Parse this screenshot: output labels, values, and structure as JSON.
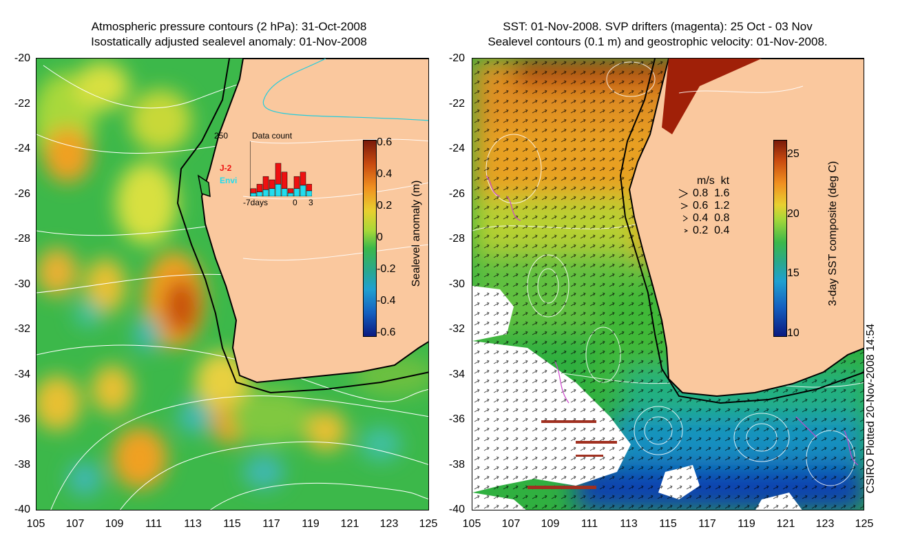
{
  "left_panel": {
    "title_line1": "Atmospheric pressure contours (2 hPa): 31-Oct-2008",
    "title_line2": "Isostatically adjusted sealevel anomaly: 01-Nov-2008",
    "y_ticks": [
      "-20",
      "-22",
      "-24",
      "-26",
      "-28",
      "-30",
      "-32",
      "-34",
      "-36",
      "-38",
      "-40"
    ],
    "x_ticks": [
      "105",
      "107",
      "109",
      "111",
      "113",
      "115",
      "117",
      "119",
      "121",
      "123",
      "125"
    ],
    "colorbar": {
      "label": "Sealevel anomaly (m)",
      "ticks": [
        "0.6",
        "0.4",
        "0.2",
        "0",
        "-0.2",
        "-0.4",
        "-0.6"
      ]
    },
    "inset": {
      "title": "Data count",
      "ymax": "250",
      "x_ticks": [
        "-7days",
        "0",
        "3"
      ],
      "series_labels": [
        "J-2",
        "Envi"
      ],
      "series_colors": [
        "#ee1111",
        "#22ddee"
      ],
      "bars": [
        {
          "j2": 20,
          "envi": 15
        },
        {
          "j2": 35,
          "envi": 20
        },
        {
          "j2": 60,
          "envi": 30
        },
        {
          "j2": 40,
          "envi": 35
        },
        {
          "j2": 95,
          "envi": 55
        },
        {
          "j2": 75,
          "envi": 35
        },
        {
          "j2": 20,
          "envi": 15
        },
        {
          "j2": 55,
          "envi": 35
        },
        {
          "j2": 60,
          "envi": 50
        },
        {
          "j2": 30,
          "envi": 25
        }
      ]
    }
  },
  "right_panel": {
    "title_line1": "SST: 01-Nov-2008. SVP drifters (magenta): 25 Oct - 03 Nov",
    "title_line2": "Sealevel contours (0.1 m) and geostrophic velocity: 01-Nov-2008.",
    "y_ticks": [
      "-20",
      "-22",
      "-24",
      "-26",
      "-28",
      "-30",
      "-32",
      "-34",
      "-36",
      "-38",
      "-40"
    ],
    "x_ticks": [
      "105",
      "107",
      "109",
      "111",
      "113",
      "115",
      "117",
      "119",
      "121",
      "123",
      "125"
    ],
    "colorbar": {
      "label": "3-day SST composite (deg C)",
      "ticks": [
        "25",
        "20",
        "15",
        "10"
      ]
    },
    "velocity_legend": {
      "header": "m/s  kt",
      "rows": [
        "0.8  1.6",
        "0.6  1.2",
        "0.4  0.8",
        "0.2  0.4"
      ]
    }
  },
  "credit": "CSIRO Plotted 20-Nov-2008 14:54",
  "colors": {
    "land": "#fac89e",
    "coast": "#000000",
    "contour": "#ffffff",
    "drifter": "#cc44cc"
  }
}
